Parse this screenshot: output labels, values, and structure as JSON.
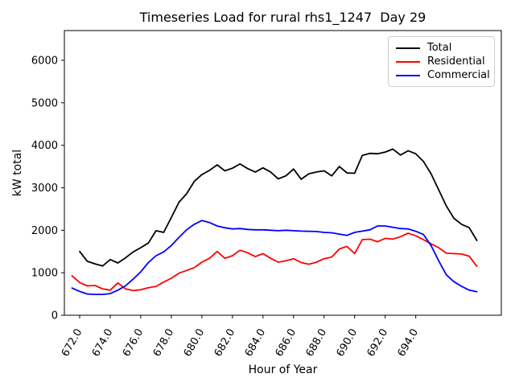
{
  "chart_data": {
    "type": "line",
    "title": "Timeseries Load for rural rhs1_1247  Day 29",
    "xlabel": "Hour of Year",
    "ylabel": "kW total",
    "xlim": [
      671.0,
      699.6
    ],
    "ylim": [
      0,
      6700
    ],
    "grid": false,
    "legend_position": "upper right",
    "xtick_rotation": 60,
    "xticks": [
      672,
      674,
      676,
      678,
      680,
      682,
      684,
      686,
      688,
      690,
      692,
      694
    ],
    "xtick_labels": [
      "672.0",
      "674.0",
      "676.0",
      "678.0",
      "680.0",
      "682.0",
      "684.0",
      "686.0",
      "688.0",
      "690.0",
      "692.0",
      "694.0"
    ],
    "yticks": [
      0,
      1000,
      2000,
      3000,
      4000,
      5000,
      6000
    ],
    "ytick_labels": [
      "0",
      "1000",
      "2000",
      "3000",
      "4000",
      "5000",
      "6000"
    ],
    "series": [
      {
        "name": "Total",
        "color": "#000000",
        "x": [
          672.0,
          672.5,
          673.0,
          673.5,
          674.0,
          674.5,
          675.0,
          675.5,
          676.0,
          676.5,
          677.0,
          677.5,
          678.0,
          678.5,
          679.0,
          679.5,
          680.0,
          680.5,
          681.0,
          681.5,
          682.0,
          682.5,
          683.0,
          683.5,
          684.0,
          684.5,
          685.0,
          685.5,
          686.0,
          686.5,
          687.0,
          687.5,
          688.0,
          688.5,
          689.0,
          689.5,
          690.0,
          690.5,
          691.0,
          691.5,
          692.0,
          692.5,
          693.0,
          693.5,
          694.0,
          694.5,
          695.0,
          695.5,
          696.0,
          696.5,
          697.0,
          697.5,
          698.0
        ],
        "values": [
          1500,
          1270,
          1210,
          1160,
          1310,
          1230,
          1350,
          1490,
          1590,
          1700,
          1990,
          1950,
          2300,
          2660,
          2860,
          3150,
          3310,
          3410,
          3540,
          3400,
          3460,
          3560,
          3450,
          3370,
          3470,
          3370,
          3210,
          3280,
          3440,
          3200,
          3330,
          3370,
          3400,
          3280,
          3500,
          3350,
          3340,
          3760,
          3810,
          3800,
          3840,
          3910,
          3770,
          3870,
          3800,
          3620,
          3330,
          2950,
          2570,
          2280,
          2140,
          2060,
          1760
        ]
      },
      {
        "name": "Residential",
        "color": "#ff0000",
        "x": [
          671.5,
          672.0,
          672.5,
          673.0,
          673.5,
          674.0,
          674.5,
          675.0,
          675.5,
          676.0,
          676.5,
          677.0,
          677.5,
          678.0,
          678.5,
          679.0,
          679.5,
          680.0,
          680.5,
          681.0,
          681.5,
          682.0,
          682.5,
          683.0,
          683.5,
          684.0,
          684.5,
          685.0,
          685.5,
          686.0,
          686.5,
          687.0,
          687.5,
          688.0,
          688.5,
          689.0,
          689.5,
          690.0,
          690.5,
          691.0,
          691.5,
          692.0,
          692.5,
          693.0,
          693.5,
          694.0,
          694.5,
          695.0,
          695.5,
          696.0,
          696.5,
          697.0,
          697.5,
          698.0
        ],
        "values": [
          930,
          770,
          690,
          700,
          620,
          590,
          760,
          620,
          580,
          600,
          650,
          680,
          780,
          870,
          990,
          1055,
          1120,
          1250,
          1340,
          1500,
          1340,
          1400,
          1530,
          1470,
          1380,
          1450,
          1340,
          1250,
          1280,
          1330,
          1240,
          1200,
          1250,
          1330,
          1370,
          1560,
          1620,
          1450,
          1780,
          1790,
          1730,
          1810,
          1790,
          1850,
          1930,
          1870,
          1780,
          1680,
          1590,
          1460,
          1450,
          1440,
          1390,
          1150
        ]
      },
      {
        "name": "Commercial",
        "color": "#0000ff",
        "x": [
          671.5,
          672.0,
          672.5,
          673.0,
          673.5,
          674.0,
          674.5,
          675.0,
          675.5,
          676.0,
          676.5,
          677.0,
          677.5,
          678.0,
          678.5,
          679.0,
          679.5,
          680.0,
          680.5,
          681.0,
          681.5,
          682.0,
          682.5,
          683.0,
          683.5,
          684.0,
          684.5,
          685.0,
          685.5,
          686.0,
          686.5,
          687.0,
          687.5,
          688.0,
          688.5,
          689.0,
          689.5,
          690.0,
          690.5,
          691.0,
          691.5,
          692.0,
          692.5,
          693.0,
          693.5,
          694.0,
          694.5,
          695.0,
          695.5,
          696.0,
          696.5,
          697.0,
          697.5,
          698.0
        ],
        "values": [
          640,
          560,
          500,
          490,
          490,
          510,
          590,
          690,
          850,
          1020,
          1240,
          1400,
          1490,
          1640,
          1830,
          2010,
          2140,
          2230,
          2180,
          2100,
          2060,
          2030,
          2040,
          2020,
          2010,
          2010,
          2000,
          1990,
          2000,
          1990,
          1980,
          1975,
          1970,
          1950,
          1940,
          1910,
          1880,
          1950,
          1980,
          2010,
          2100,
          2100,
          2070,
          2040,
          2030,
          1975,
          1900,
          1640,
          1280,
          950,
          790,
          680,
          590,
          555
        ]
      }
    ]
  }
}
